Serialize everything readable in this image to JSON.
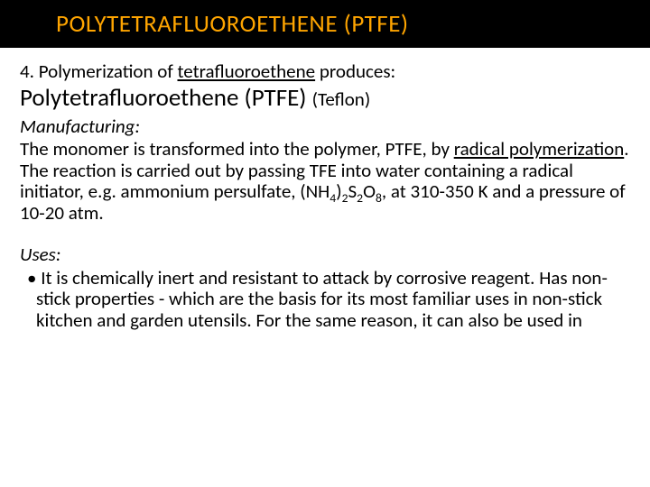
{
  "title": "POLYTETRAFLUOROETHENE (PTFE)",
  "intro": {
    "prefix": "4. Polymerization of ",
    "underlined": "tetrafluoroethene",
    "suffix": " produces:"
  },
  "polymer": {
    "name": "Polytetrafluoroethene (PTFE)",
    "aka": "(Teflon)"
  },
  "manufacturing": {
    "heading": "Manufacturing:",
    "p1a": "The monomer is transformed into the polymer, PTFE, by ",
    "p1u": "radical polymerization",
    "p1b": ".  The reaction is carried out by passing TFE into water containing a radical initiator, e.g. ammonium persulfate, (NH",
    "s1": "4",
    "p1c": ")",
    "s2": "2",
    "p1d": "S",
    "s3": "2",
    "p1e": "O",
    "s4": "8",
    "p1f": ", at 310-350 K and a pressure of 10-20 atm."
  },
  "uses": {
    "heading": "Uses:",
    "bullet1": "• It is chemically inert and resistant to attack by corrosive reagent. Has non-stick properties - which are the basis for its most familiar uses in non-stick kitchen and garden utensils. For the same reason, it can also be used in"
  },
  "colors": {
    "title_bg": "#000000",
    "title_fg": "#ffa500",
    "body_bg": "#ffffff",
    "text": "#000000"
  }
}
